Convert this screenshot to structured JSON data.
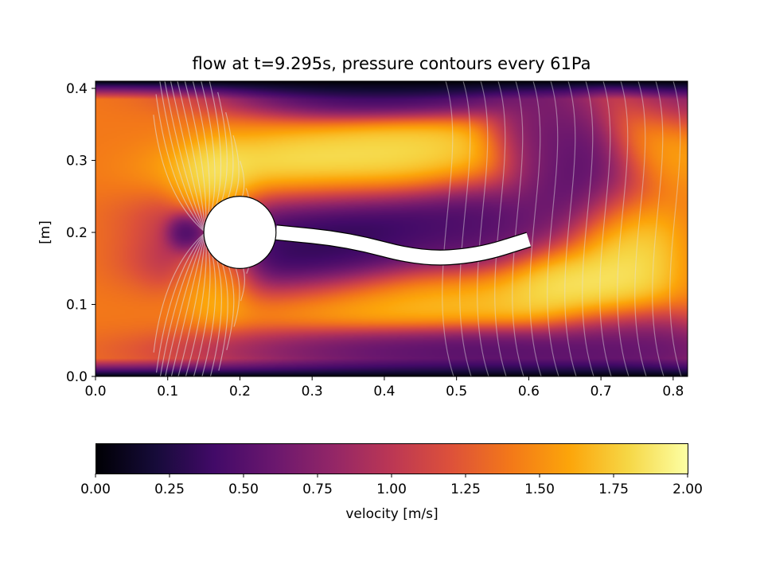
{
  "chart_data": {
    "type": "heatmap",
    "title": "flow at t=9.295s, pressure contours every 61Pa",
    "xlabel": "",
    "ylabel": "[m]",
    "xlim": [
      0.0,
      0.82
    ],
    "ylim": [
      0.0,
      0.41
    ],
    "xticks": [
      "0.0",
      "0.1",
      "0.2",
      "0.3",
      "0.4",
      "0.5",
      "0.6",
      "0.7",
      "0.8"
    ],
    "yticks": [
      "0.0",
      "0.1",
      "0.2",
      "0.3",
      "0.4"
    ],
    "colormap": "inferno",
    "colorbar": {
      "label": "velocity [m/s]",
      "range": [
        0.0,
        2.0
      ],
      "ticks": [
        "0.00",
        "0.25",
        "0.50",
        "0.75",
        "1.00",
        "1.25",
        "1.50",
        "1.75",
        "2.00"
      ],
      "orientation": "horizontal",
      "placement": "bottom"
    },
    "cylinder": {
      "center": [
        0.2,
        0.2
      ],
      "radius": 0.05
    },
    "flag": {
      "points": [
        [
          0.25,
          0.2
        ],
        [
          0.35,
          0.19
        ],
        [
          0.45,
          0.163
        ],
        [
          0.53,
          0.168
        ],
        [
          0.6,
          0.19
        ]
      ],
      "thickness": 0.02
    },
    "velocity_base": 1.4,
    "velocity_features": [
      {
        "x": 0.3,
        "y": 0.28,
        "sx": 0.1,
        "sy": 0.03,
        "v": 2.0
      },
      {
        "x": 0.45,
        "y": 0.3,
        "sx": 0.08,
        "sy": 0.03,
        "v": 1.9
      },
      {
        "x": 0.17,
        "y": 0.26,
        "sx": 0.03,
        "sy": 0.03,
        "v": 2.0
      },
      {
        "x": 0.17,
        "y": 0.14,
        "sx": 0.03,
        "sy": 0.03,
        "v": 1.9
      },
      {
        "x": 0.36,
        "y": 0.225,
        "sx": 0.12,
        "sy": 0.03,
        "v": 0.05
      },
      {
        "x": 0.3,
        "y": 0.16,
        "sx": 0.1,
        "sy": 0.03,
        "v": 0.1
      },
      {
        "x": 0.52,
        "y": 0.21,
        "sx": 0.06,
        "sy": 0.04,
        "v": 0.4
      },
      {
        "x": 0.45,
        "y": 0.11,
        "sx": 0.13,
        "sy": 0.025,
        "v": 1.8
      },
      {
        "x": 0.66,
        "y": 0.12,
        "sx": 0.06,
        "sy": 0.03,
        "v": 2.0
      },
      {
        "x": 0.73,
        "y": 0.18,
        "sx": 0.04,
        "sy": 0.05,
        "v": 1.95
      },
      {
        "x": 0.68,
        "y": 0.28,
        "sx": 0.05,
        "sy": 0.05,
        "v": 0.3
      },
      {
        "x": 0.62,
        "y": 0.32,
        "sx": 0.04,
        "sy": 0.05,
        "v": 0.5
      },
      {
        "x": 0.4,
        "y": 0.395,
        "sx": 0.12,
        "sy": 0.02,
        "v": 0.1
      },
      {
        "x": 0.8,
        "y": 0.39,
        "sx": 0.04,
        "sy": 0.03,
        "v": 0.4
      },
      {
        "x": 0.55,
        "y": 0.035,
        "sx": 0.2,
        "sy": 0.02,
        "v": 0.3
      },
      {
        "x": 0.72,
        "y": 0.05,
        "sx": 0.06,
        "sy": 0.03,
        "v": 0.5
      },
      {
        "x": 0.78,
        "y": 0.33,
        "sx": 0.04,
        "sy": 0.04,
        "v": 1.7
      },
      {
        "x": 0.13,
        "y": 0.2,
        "sx": 0.015,
        "sy": 0.015,
        "v": 0.2
      }
    ]
  }
}
